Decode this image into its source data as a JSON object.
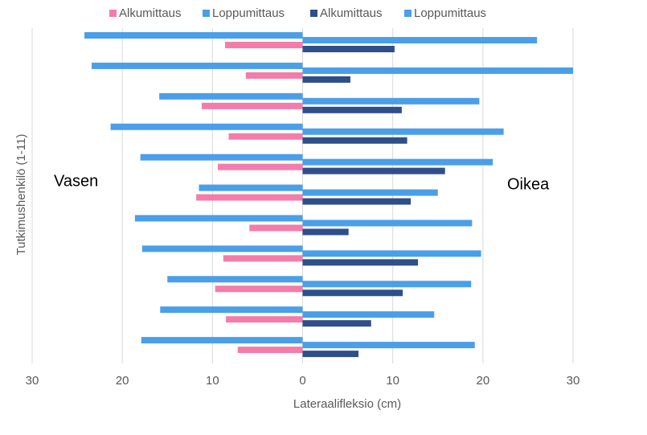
{
  "chart_data": {
    "type": "butterfly-bar",
    "x_label": "Lateraalifleksio (cm)",
    "y_label": "Tutkimushenkilö (1-11)",
    "annotations": [
      "Vasen",
      "Oikea"
    ],
    "categories": [
      null,
      null,
      null,
      null,
      null,
      null,
      null,
      null,
      null,
      null,
      null
    ],
    "series": [
      {
        "name": "Alkumittaus",
        "color": "#f47caa",
        "values": [
          -8.6,
          -6.3,
          -11.2,
          -8.2,
          -9.4,
          -11.8,
          -5.9,
          -8.8,
          -9.7,
          -8.5,
          -7.2
        ]
      },
      {
        "name": "Loppumittaus",
        "color": "#4a9fe8",
        "values": [
          -24.2,
          -23.4,
          -15.9,
          -21.3,
          -18.0,
          -11.5,
          -18.6,
          -17.8,
          -15.0,
          -15.8,
          -17.9
        ]
      },
      {
        "name": "Alkumittaus",
        "color": "#2f4f8b",
        "values": [
          10.2,
          5.3,
          11.0,
          11.6,
          15.8,
          12.0,
          5.1,
          12.8,
          11.1,
          7.6,
          6.2
        ]
      },
      {
        "name": "Loppumittaus",
        "color": "#4a9fe8",
        "values": [
          26.0,
          30.0,
          19.6,
          22.3,
          21.1,
          15.0,
          18.8,
          19.8,
          18.7,
          14.6,
          19.1
        ]
      }
    ],
    "xlim": [
      -30,
      30
    ],
    "xticks": [
      {
        "value": -30,
        "label": "30"
      },
      {
        "value": -20,
        "label": "20"
      },
      {
        "value": -10,
        "label": "10"
      },
      0,
      10,
      20,
      30
    ],
    "grid": true
  }
}
